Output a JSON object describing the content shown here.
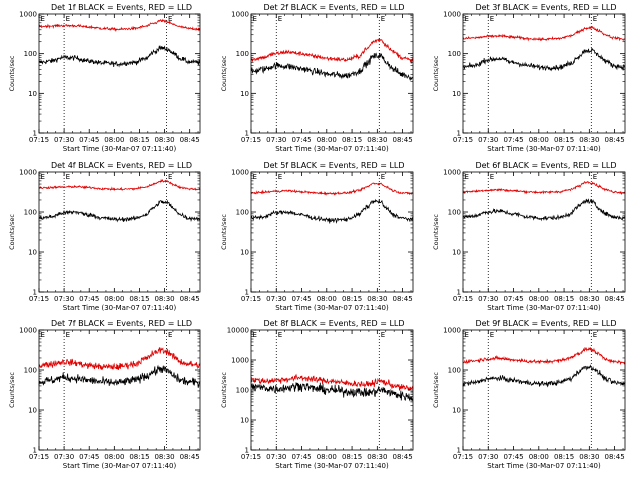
{
  "figure": {
    "colors": {
      "events": "#000000",
      "lld": "#e00000",
      "background": "#ffffff"
    },
    "panels_layout": "3x3 grid",
    "ylabel": "Counts/sec",
    "xlabel": "Start Time (30-Mar-07 07:11:40)",
    "y_scale": "log",
    "marker_letter": "E"
  },
  "chart_data": [
    {
      "type": "line",
      "title": "Det 1f BLACK = Events, RED = LLD",
      "x_ticks": [
        "07:15",
        "07:30",
        "07:45",
        "08:00",
        "08:15",
        "08:30",
        "08:45"
      ],
      "y_ticks": [
        "1",
        "10",
        "100",
        "1000"
      ],
      "ylim": [
        1,
        1000
      ],
      "y_log": true,
      "xlim_min": [
        3.33,
        99.5
      ],
      "markers_min": [
        18.33,
        79.5
      ],
      "ylabel": "Counts/sec",
      "xlabel": "Start Time (30-Mar-07 07:11:40)",
      "grid": false,
      "series": [
        {
          "name": "Events",
          "color": "#000000",
          "x_min": [
            3.3,
            10,
            18,
            25,
            33,
            42,
            50,
            60,
            67,
            72,
            76,
            80,
            84,
            88,
            93,
            99.5
          ],
          "values": [
            60,
            65,
            80,
            78,
            65,
            58,
            55,
            60,
            75,
            110,
            140,
            130,
            100,
            75,
            62,
            60
          ],
          "noise": 0.06
        },
        {
          "name": "LLD",
          "color": "#e00000",
          "x_min": [
            3.3,
            10,
            18,
            25,
            33,
            42,
            50,
            60,
            67,
            72,
            76,
            80,
            84,
            88,
            93,
            99.5
          ],
          "values": [
            480,
            500,
            510,
            505,
            470,
            430,
            410,
            430,
            490,
            580,
            680,
            630,
            540,
            470,
            430,
            420
          ],
          "noise": 0.03
        }
      ]
    },
    {
      "type": "line",
      "title": "Det 2f BLACK = Events, RED = LLD",
      "x_ticks": [
        "07:15",
        "07:30",
        "07:45",
        "08:00",
        "08:15",
        "08:30",
        "08:45"
      ],
      "y_ticks": [
        "1",
        "10",
        "100",
        "1000"
      ],
      "ylim": [
        1,
        1000
      ],
      "y_log": true,
      "xlim_min": [
        3.33,
        99.5
      ],
      "markers_min": [
        18.33,
        79.5
      ],
      "ylabel": "Counts/sec",
      "xlabel": "Start Time (30-Mar-07 07:11:40)",
      "grid": false,
      "series": [
        {
          "name": "Events",
          "color": "#000000",
          "x_min": [
            3.3,
            10,
            18,
            25,
            33,
            42,
            50,
            60,
            67,
            72,
            76,
            80,
            84,
            88,
            93,
            99.5
          ],
          "values": [
            35,
            40,
            50,
            48,
            42,
            35,
            30,
            28,
            35,
            55,
            85,
            90,
            60,
            40,
            30,
            25
          ],
          "noise": 0.08
        },
        {
          "name": "LLD",
          "color": "#e00000",
          "x_min": [
            3.3,
            10,
            18,
            25,
            33,
            42,
            50,
            60,
            67,
            72,
            76,
            80,
            84,
            88,
            93,
            99.5
          ],
          "values": [
            70,
            80,
            100,
            110,
            100,
            85,
            75,
            70,
            85,
            130,
            200,
            230,
            160,
            110,
            80,
            65
          ],
          "noise": 0.05
        }
      ]
    },
    {
      "type": "line",
      "title": "Det 3f BLACK = Events, RED = LLD",
      "x_ticks": [
        "07:15",
        "07:30",
        "07:45",
        "08:00",
        "08:15",
        "08:30",
        "08:45"
      ],
      "y_ticks": [
        "1",
        "10",
        "100",
        "1000"
      ],
      "ylim": [
        1,
        1000
      ],
      "y_log": true,
      "xlim_min": [
        3.33,
        99.5
      ],
      "markers_min": [
        18.33,
        79.5
      ],
      "ylabel": "Counts/sec",
      "xlabel": "Start Time (30-Mar-07 07:11:40)",
      "grid": false,
      "series": [
        {
          "name": "Events",
          "color": "#000000",
          "x_min": [
            3.3,
            10,
            18,
            25,
            33,
            42,
            50,
            60,
            67,
            72,
            76,
            80,
            84,
            88,
            93,
            99.5
          ],
          "values": [
            45,
            50,
            70,
            75,
            60,
            50,
            45,
            45,
            55,
            85,
            120,
            120,
            90,
            65,
            50,
            45
          ],
          "noise": 0.06
        },
        {
          "name": "LLD",
          "color": "#e00000",
          "x_min": [
            3.3,
            10,
            18,
            25,
            33,
            42,
            50,
            60,
            67,
            72,
            76,
            80,
            84,
            88,
            93,
            99.5
          ],
          "values": [
            240,
            250,
            270,
            280,
            260,
            240,
            230,
            240,
            280,
            350,
            440,
            450,
            380,
            300,
            250,
            230
          ],
          "noise": 0.03
        }
      ]
    },
    {
      "type": "line",
      "title": "Det 4f BLACK = Events, RED = LLD",
      "x_ticks": [
        "07:15",
        "07:30",
        "07:45",
        "08:00",
        "08:15",
        "08:30",
        "08:45"
      ],
      "y_ticks": [
        "1",
        "10",
        "100",
        "1000"
      ],
      "ylim": [
        1,
        1000
      ],
      "y_log": true,
      "xlim_min": [
        3.33,
        99.5
      ],
      "markers_min": [
        18.33,
        79.5
      ],
      "ylabel": "Counts/sec",
      "xlabel": "Start Time (30-Mar-07 07:11:40)",
      "grid": false,
      "series": [
        {
          "name": "Events",
          "color": "#000000",
          "x_min": [
            3.3,
            10,
            18,
            25,
            33,
            42,
            50,
            60,
            67,
            72,
            76,
            80,
            84,
            88,
            93,
            99.5
          ],
          "values": [
            70,
            75,
            95,
            100,
            85,
            70,
            65,
            68,
            85,
            130,
            180,
            170,
            120,
            85,
            70,
            68
          ],
          "noise": 0.05
        },
        {
          "name": "LLD",
          "color": "#e00000",
          "x_min": [
            3.3,
            10,
            18,
            25,
            33,
            42,
            50,
            60,
            67,
            72,
            76,
            80,
            84,
            88,
            93,
            99.5
          ],
          "values": [
            400,
            410,
            420,
            430,
            410,
            380,
            370,
            380,
            420,
            500,
            600,
            580,
            480,
            410,
            380,
            370
          ],
          "noise": 0.025
        }
      ]
    },
    {
      "type": "line",
      "title": "Det 5f BLACK = Events, RED = LLD",
      "x_ticks": [
        "07:15",
        "07:30",
        "07:45",
        "08:00",
        "08:15",
        "08:30",
        "08:45"
      ],
      "y_ticks": [
        "1",
        "10",
        "100",
        "1000"
      ],
      "ylim": [
        1,
        1000
      ],
      "y_log": true,
      "xlim_min": [
        3.33,
        99.5
      ],
      "markers_min": [
        18.33,
        79.5
      ],
      "ylabel": "Counts/sec",
      "xlabel": "Start Time (30-Mar-07 07:11:40)",
      "grid": false,
      "series": [
        {
          "name": "Events",
          "color": "#000000",
          "x_min": [
            3.3,
            10,
            18,
            25,
            33,
            42,
            50,
            60,
            67,
            72,
            76,
            80,
            84,
            88,
            93,
            99.5
          ],
          "values": [
            70,
            75,
            95,
            100,
            85,
            70,
            62,
            65,
            85,
            130,
            185,
            180,
            120,
            85,
            70,
            65
          ],
          "noise": 0.05
        },
        {
          "name": "LLD",
          "color": "#e00000",
          "x_min": [
            3.3,
            10,
            18,
            25,
            33,
            42,
            50,
            60,
            67,
            72,
            76,
            80,
            84,
            88,
            93,
            99.5
          ],
          "values": [
            300,
            310,
            330,
            340,
            320,
            300,
            290,
            300,
            340,
            420,
            520,
            510,
            420,
            340,
            300,
            290
          ],
          "noise": 0.025
        }
      ]
    },
    {
      "type": "line",
      "title": "Det 6f BLACK = Events, RED = LLD",
      "x_ticks": [
        "07:15",
        "07:30",
        "07:45",
        "08:00",
        "08:15",
        "08:30",
        "08:45"
      ],
      "y_ticks": [
        "1",
        "10",
        "100",
        "1000"
      ],
      "ylim": [
        1,
        1000
      ],
      "y_log": true,
      "xlim_min": [
        3.33,
        99.5
      ],
      "markers_min": [
        18.33,
        79.5
      ],
      "ylabel": "Counts/sec",
      "xlabel": "Start Time (30-Mar-07 07:11:40)",
      "grid": false,
      "series": [
        {
          "name": "Events",
          "color": "#000000",
          "x_min": [
            3.3,
            10,
            18,
            25,
            33,
            42,
            50,
            60,
            67,
            72,
            76,
            80,
            84,
            88,
            93,
            99.5
          ],
          "values": [
            75,
            80,
            100,
            105,
            90,
            75,
            70,
            72,
            90,
            140,
            190,
            180,
            125,
            90,
            75,
            70
          ],
          "noise": 0.05
        },
        {
          "name": "LLD",
          "color": "#e00000",
          "x_min": [
            3.3,
            10,
            18,
            25,
            33,
            42,
            50,
            60,
            67,
            72,
            76,
            80,
            84,
            88,
            93,
            99.5
          ],
          "values": [
            320,
            330,
            350,
            360,
            340,
            320,
            310,
            320,
            360,
            440,
            560,
            540,
            440,
            360,
            320,
            300
          ],
          "noise": 0.025
        }
      ]
    },
    {
      "type": "line",
      "title": "Det 7f BLACK = Events, RED = LLD",
      "x_ticks": [
        "07:15",
        "07:30",
        "07:45",
        "08:00",
        "08:15",
        "08:30",
        "08:45"
      ],
      "y_ticks": [
        "1",
        "10",
        "100",
        "1000"
      ],
      "ylim": [
        1,
        1000
      ],
      "y_log": true,
      "xlim_min": [
        3.33,
        99.5
      ],
      "markers_min": [
        18.33,
        79.5
      ],
      "ylabel": "Counts/sec",
      "xlabel": "Start Time (30-Mar-07 07:11:40)",
      "grid": false,
      "series": [
        {
          "name": "Events",
          "color": "#000000",
          "x_min": [
            3.3,
            10,
            18,
            25,
            33,
            42,
            50,
            60,
            67,
            72,
            76,
            80,
            84,
            88,
            93,
            99.5
          ],
          "values": [
            50,
            55,
            65,
            62,
            55,
            50,
            48,
            55,
            70,
            90,
            110,
            95,
            70,
            55,
            50,
            48
          ],
          "noise": 0.1
        },
        {
          "name": "LLD",
          "color": "#e00000",
          "x_min": [
            3.3,
            10,
            18,
            25,
            33,
            42,
            50,
            60,
            67,
            72,
            76,
            80,
            84,
            88,
            93,
            99.5
          ],
          "values": [
            130,
            140,
            160,
            150,
            130,
            120,
            120,
            140,
            190,
            260,
            320,
            290,
            210,
            160,
            140,
            130
          ],
          "noise": 0.08
        }
      ]
    },
    {
      "type": "line",
      "title": "Det 8f BLACK = Events, RED = LLD",
      "x_ticks": [
        "07:15",
        "07:30",
        "07:45",
        "08:00",
        "08:15",
        "08:30",
        "08:45"
      ],
      "y_ticks": [
        "1",
        "10",
        "100",
        "1000",
        "10000"
      ],
      "ylim": [
        1,
        10000
      ],
      "y_log": true,
      "xlim_min": [
        3.33,
        99.5
      ],
      "markers_min": [
        18.33,
        79.5
      ],
      "ylabel": "Counts/sec",
      "xlabel": "Start Time (30-Mar-07 07:11:40)",
      "grid": false,
      "series": [
        {
          "name": "Events",
          "color": "#000000",
          "x_min": [
            3.3,
            10,
            18,
            25,
            33,
            42,
            50,
            60,
            67,
            72,
            76,
            80,
            84,
            88,
            93,
            99.5
          ],
          "values": [
            130,
            120,
            110,
            120,
            140,
            110,
            100,
            90,
            85,
            80,
            85,
            100,
            90,
            75,
            65,
            55
          ],
          "noise": 0.15
        },
        {
          "name": "LLD",
          "color": "#e00000",
          "x_min": [
            3.3,
            10,
            18,
            25,
            33,
            42,
            50,
            60,
            67,
            72,
            76,
            80,
            84,
            88,
            93,
            99.5
          ],
          "values": [
            220,
            200,
            210,
            230,
            260,
            220,
            200,
            170,
            160,
            150,
            170,
            200,
            170,
            140,
            120,
            110
          ],
          "noise": 0.1
        }
      ]
    },
    {
      "type": "line",
      "title": "Det 9f BLACK = Events, RED = LLD",
      "x_ticks": [
        "07:15",
        "07:30",
        "07:45",
        "08:00",
        "08:15",
        "08:30",
        "08:45"
      ],
      "y_ticks": [
        "1",
        "10",
        "100",
        "1000"
      ],
      "ylim": [
        1,
        1000
      ],
      "y_log": true,
      "xlim_min": [
        3.33,
        99.5
      ],
      "markers_min": [
        18.33,
        79.5
      ],
      "ylabel": "Counts/sec",
      "xlabel": "Start Time (30-Mar-07 07:11:40)",
      "grid": false,
      "series": [
        {
          "name": "Events",
          "color": "#000000",
          "x_min": [
            3.3,
            10,
            18,
            25,
            33,
            42,
            50,
            60,
            67,
            72,
            76,
            80,
            84,
            88,
            93,
            99.5
          ],
          "values": [
            45,
            48,
            60,
            62,
            55,
            48,
            45,
            48,
            60,
            90,
            120,
            115,
            85,
            60,
            48,
            45
          ],
          "noise": 0.06
        },
        {
          "name": "LLD",
          "color": "#e00000",
          "x_min": [
            3.3,
            10,
            18,
            25,
            33,
            42,
            50,
            60,
            67,
            72,
            76,
            80,
            84,
            88,
            93,
            99.5
          ],
          "values": [
            160,
            170,
            190,
            195,
            180,
            165,
            160,
            170,
            200,
            260,
            330,
            320,
            250,
            190,
            160,
            150
          ],
          "noise": 0.04
        }
      ]
    }
  ]
}
